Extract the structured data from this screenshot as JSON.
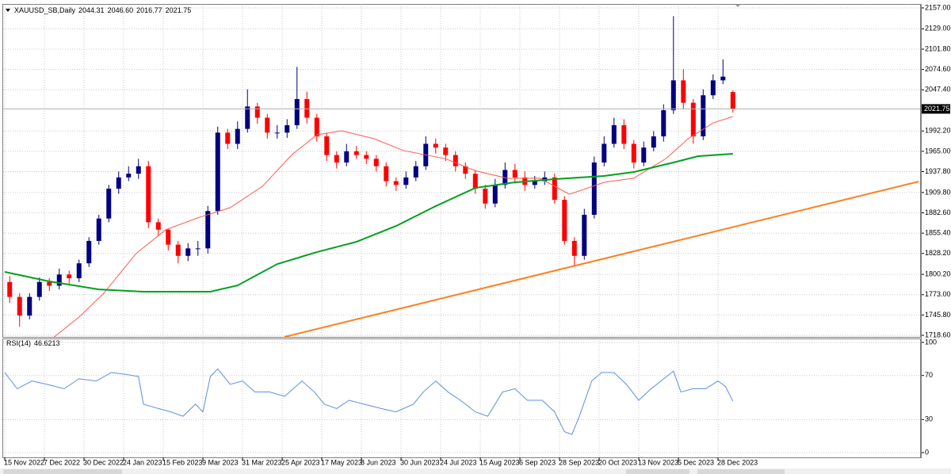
{
  "chart_data": [
    {
      "type": "candlestick",
      "title": "XAUUSD_SB,Daily",
      "quote": [
        {
          "value": 2044.31,
          "label": "2044.31"
        },
        {
          "value": 2046.6,
          "label": "2046.60"
        },
        {
          "value": 2016.77,
          "label": "2016.77"
        },
        {
          "value": 2021.75,
          "label": "2021.75"
        }
      ],
      "last_price": {
        "value": 2021.75,
        "label": "2021.75"
      },
      "up_color": "#000080",
      "down_color": "#ff0000",
      "xlim": [
        -1.92,
        369.9
      ],
      "ylim": [
        1716.5,
        2162.3
      ],
      "xticks": [
        {
          "value": 0,
          "label": "15 Nov 2022"
        },
        {
          "value": 16,
          "label": "7 Dec 2022"
        },
        {
          "value": 32,
          "label": "30 Dec 2022"
        },
        {
          "value": 48,
          "label": "24 Jan 2023"
        },
        {
          "value": 64,
          "label": "15 Feb 2023"
        },
        {
          "value": 80,
          "label": "9 Mar 2023"
        },
        {
          "value": 96,
          "label": "31 Mar 2023"
        },
        {
          "value": 112,
          "label": "25 Apr 2023"
        },
        {
          "value": 128,
          "label": "17 May 2023"
        },
        {
          "value": 144,
          "label": "8 Jun 2023"
        },
        {
          "value": 160,
          "label": "30 Jun 2023"
        },
        {
          "value": 176,
          "label": "24 Jul 2023"
        },
        {
          "value": 192,
          "label": "15 Aug 2023"
        },
        {
          "value": 208,
          "label": "6 Sep 2023"
        },
        {
          "value": 224,
          "label": "28 Sep 2023"
        },
        {
          "value": 240,
          "label": "20 Oct 2023"
        },
        {
          "value": 256,
          "label": "13 Nov 2023"
        },
        {
          "value": 272,
          "label": "5 Dec 2023"
        },
        {
          "value": 288,
          "label": "28 Dec 2023"
        }
      ],
      "yticks": [
        {
          "value": 2157,
          "label": "2157.00"
        },
        {
          "value": 2129,
          "label": "2129.00"
        },
        {
          "value": 2101.8,
          "label": "2101.80"
        },
        {
          "value": 2074.6,
          "label": "2074.60"
        },
        {
          "value": 2047.4,
          "label": "2047.40"
        },
        {
          "value": 1992.2,
          "label": "1992.20"
        },
        {
          "value": 1965,
          "label": "1965.00"
        },
        {
          "value": 1937.8,
          "label": "1937.80"
        },
        {
          "value": 1909.8,
          "label": "1909.80"
        },
        {
          "value": 1882.6,
          "label": "1882.60"
        },
        {
          "value": 1855.4,
          "label": "1855.40"
        },
        {
          "value": 1828.2,
          "label": "1828.20"
        },
        {
          "value": 1800.2,
          "label": "1800.20"
        },
        {
          "value": 1773,
          "label": "1773.00"
        },
        {
          "value": 1745.8,
          "label": "1745.80"
        },
        {
          "value": 1718.6,
          "label": "1718.60"
        }
      ],
      "grid": true,
      "x": [
        2,
        6,
        10,
        14,
        18,
        22,
        26,
        30,
        34,
        38,
        42,
        46,
        50,
        54,
        58,
        62,
        66,
        70,
        74,
        78,
        82,
        86,
        90,
        94,
        98,
        102,
        106,
        110,
        114,
        118,
        122,
        126,
        130,
        134,
        138,
        142,
        146,
        150,
        154,
        158,
        162,
        166,
        170,
        174,
        178,
        182,
        186,
        190,
        194,
        198,
        202,
        206,
        210,
        214,
        218,
        222,
        226,
        230,
        234,
        238,
        242,
        246,
        250,
        254,
        258,
        262,
        266,
        270,
        274,
        278,
        282,
        286,
        290,
        294
      ],
      "open": [
        1790,
        1770,
        1745,
        1770,
        1790,
        1785,
        1800,
        1795,
        1815,
        1845,
        1875,
        1915,
        1930,
        1935,
        1945,
        1870,
        1860,
        1840,
        1825,
        1835,
        1835,
        1885,
        1990,
        1975,
        1995,
        2025,
        2010,
        1990,
        1990,
        2000,
        2035,
        2010,
        1985,
        1960,
        1950,
        1965,
        1960,
        1955,
        1945,
        1925,
        1920,
        1930,
        1945,
        1975,
        1970,
        1960,
        1945,
        1935,
        1915,
        1895,
        1920,
        1940,
        1930,
        1920,
        1925,
        1930,
        1900,
        1845,
        1825,
        1880,
        1950,
        1975,
        2000,
        1975,
        1950,
        1970,
        1985,
        2020,
        2060,
        2030,
        1985,
        2040,
        2060,
        2044.31
      ],
      "high": [
        1798,
        1775,
        1775,
        1796,
        1795,
        1808,
        1805,
        1820,
        1850,
        1880,
        1920,
        1938,
        1945,
        1955,
        1952,
        1875,
        1862,
        1845,
        1842,
        1845,
        1892,
        1998,
        1995,
        2005,
        2048,
        2030,
        2015,
        2000,
        2008,
        2078,
        2045,
        2015,
        1990,
        1965,
        1975,
        1972,
        1965,
        1960,
        1950,
        1930,
        1938,
        1952,
        1985,
        1982,
        1975,
        1965,
        1950,
        1940,
        1920,
        1928,
        1950,
        1948,
        1938,
        1932,
        1938,
        1935,
        1905,
        1850,
        1888,
        1958,
        1985,
        2010,
        2008,
        1980,
        1978,
        1992,
        2028,
        2146,
        2075,
        2035,
        2048,
        2068,
        2088,
        2046.6
      ],
      "low": [
        1762,
        1730,
        1740,
        1765,
        1778,
        1780,
        1788,
        1790,
        1810,
        1840,
        1870,
        1908,
        1925,
        1928,
        1862,
        1852,
        1832,
        1815,
        1818,
        1825,
        1828,
        1880,
        1968,
        1968,
        1990,
        2002,
        1982,
        1982,
        1983,
        1995,
        2002,
        1978,
        1952,
        1942,
        1945,
        1955,
        1948,
        1938,
        1918,
        1912,
        1915,
        1925,
        1940,
        1962,
        1952,
        1938,
        1928,
        1908,
        1888,
        1890,
        1915,
        1922,
        1912,
        1915,
        1920,
        1895,
        1840,
        1812,
        1820,
        1875,
        1945,
        1970,
        1968,
        1942,
        1945,
        1965,
        1978,
        2015,
        2022,
        1975,
        1980,
        2035,
        2055,
        2016.77
      ],
      "close": [
        1770,
        1745,
        1770,
        1790,
        1785,
        1800,
        1795,
        1815,
        1845,
        1875,
        1915,
        1930,
        1935,
        1945,
        1870,
        1860,
        1840,
        1825,
        1835,
        1835,
        1885,
        1990,
        1975,
        1995,
        2025,
        2010,
        1990,
        1990,
        2000,
        2035,
        2010,
        1985,
        1960,
        1950,
        1965,
        1960,
        1955,
        1945,
        1925,
        1920,
        1930,
        1945,
        1975,
        1970,
        1960,
        1945,
        1935,
        1915,
        1895,
        1920,
        1940,
        1930,
        1920,
        1925,
        1930,
        1900,
        1845,
        1825,
        1880,
        1950,
        1975,
        2000,
        1975,
        1950,
        1970,
        1985,
        2020,
        2060,
        2030,
        1985,
        2040,
        2060,
        2065,
        2021.75
      ],
      "lines": [
        {
          "color": "#ff5a4a",
          "width": 1,
          "x": [
            20,
            30,
            40,
            53,
            65,
            78,
            91,
            104,
            116,
            126,
            136,
            149,
            161,
            178,
            190,
            203,
            216,
            228,
            242,
            254,
            267,
            276,
            286,
            294
          ],
          "values": [
            1716.5,
            1743,
            1775,
            1828,
            1860,
            1876,
            1889.5,
            1918,
            1960.6,
            1987,
            1992.5,
            1982,
            1966,
            1955,
            1939,
            1928.8,
            1929,
            1907.5,
            1923.5,
            1929,
            1955.3,
            1982,
            2003,
            2011.6
          ]
        },
        {
          "color": "#00a020",
          "width": 2,
          "x": [
            0,
            18,
            38,
            56,
            83,
            94,
            110,
            126,
            142,
            158,
            174,
            190,
            206,
            222,
            242,
            254,
            270,
            280,
            294
          ],
          "values": [
            1803.5,
            1790.8,
            1780.1,
            1777,
            1777,
            1785.4,
            1814,
            1830,
            1843.8,
            1865,
            1891.6,
            1916,
            1923.5,
            1927.7,
            1932,
            1937.3,
            1950,
            1958.5,
            1961.7
          ]
        },
        {
          "color": "#ff7f1e",
          "width": 2,
          "x": [
            113,
            369
          ],
          "values": [
            1716.5,
            1924.5
          ]
        }
      ]
    },
    {
      "type": "line",
      "title": "RSI(14)",
      "title_value": 46.6213,
      "color": "#5b8fe0",
      "ylim": [
        -4.3,
        103.6
      ],
      "yticks": [
        0,
        30,
        70,
        100
      ],
      "x": [
        0,
        5,
        11,
        17,
        24,
        30,
        37,
        43,
        49,
        54,
        56,
        62,
        67,
        72,
        77,
        80,
        83,
        86,
        91,
        96,
        101,
        107,
        113,
        120,
        125,
        129,
        134,
        139,
        145,
        152,
        158,
        165,
        169,
        174,
        179,
        184,
        190,
        195,
        201,
        206,
        211,
        217,
        222,
        226,
        229,
        232,
        237,
        241,
        246,
        251,
        256,
        261,
        265,
        270,
        273,
        278,
        283,
        288,
        291,
        294
      ],
      "values": [
        72.7,
        58,
        65,
        62,
        58,
        67,
        65,
        72.7,
        71,
        69,
        44,
        40,
        37,
        33,
        44,
        37,
        69,
        76,
        62,
        65,
        55,
        55,
        51,
        65,
        55,
        44,
        40,
        47.5,
        44,
        40,
        37,
        44,
        55,
        65,
        55,
        47.5,
        37,
        33,
        55,
        58,
        47.5,
        47.5,
        37,
        19,
        16.5,
        33,
        65,
        72.7,
        72.7,
        62,
        47.5,
        58,
        65,
        74,
        55,
        58,
        58,
        65,
        60,
        46.6213
      ]
    }
  ]
}
